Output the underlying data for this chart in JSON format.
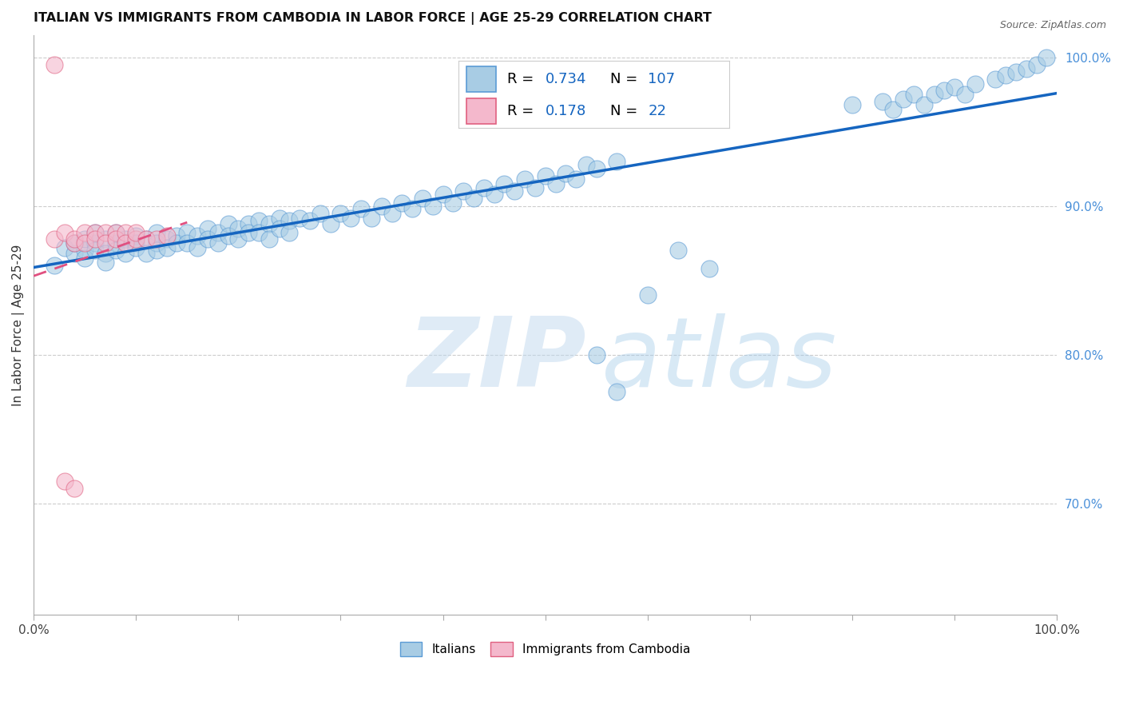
{
  "title": "ITALIAN VS IMMIGRANTS FROM CAMBODIA IN LABOR FORCE | AGE 25-29 CORRELATION CHART",
  "source": "Source: ZipAtlas.com",
  "ylabel": "In Labor Force | Age 25-29",
  "ylabel_right_ticks": [
    0.7,
    0.8,
    0.9,
    1.0
  ],
  "ylabel_right_labels": [
    "70.0%",
    "80.0%",
    "90.0%",
    "100.0%"
  ],
  "xlim": [
    0.0,
    1.0
  ],
  "ylim": [
    0.625,
    1.015
  ],
  "watermark_zip": "ZIP",
  "watermark_atlas": "atlas",
  "blue_color": "#a8cce4",
  "blue_edge": "#5b9bd5",
  "pink_color": "#f4b8cc",
  "pink_edge": "#e06080",
  "trend_blue": "#1565C0",
  "trend_pink": "#e05080",
  "label_italians": "Italians",
  "label_cambodia": "Immigrants from Cambodia",
  "blue_x": [
    0.02,
    0.03,
    0.04,
    0.04,
    0.05,
    0.05,
    0.05,
    0.06,
    0.06,
    0.06,
    0.07,
    0.07,
    0.07,
    0.08,
    0.08,
    0.08,
    0.09,
    0.09,
    0.1,
    0.1,
    0.1,
    0.11,
    0.11,
    0.12,
    0.12,
    0.12,
    0.13,
    0.13,
    0.14,
    0.14,
    0.15,
    0.15,
    0.16,
    0.16,
    0.17,
    0.17,
    0.18,
    0.18,
    0.19,
    0.19,
    0.2,
    0.2,
    0.21,
    0.21,
    0.22,
    0.22,
    0.23,
    0.23,
    0.24,
    0.24,
    0.25,
    0.25,
    0.26,
    0.27,
    0.28,
    0.29,
    0.3,
    0.31,
    0.32,
    0.33,
    0.34,
    0.35,
    0.36,
    0.37,
    0.38,
    0.39,
    0.4,
    0.41,
    0.42,
    0.43,
    0.44,
    0.45,
    0.46,
    0.47,
    0.48,
    0.49,
    0.5,
    0.51,
    0.52,
    0.53,
    0.54,
    0.55,
    0.57,
    0.6,
    0.63,
    0.66,
    0.8,
    0.83,
    0.84,
    0.85,
    0.86,
    0.87,
    0.88,
    0.89,
    0.9,
    0.91,
    0.92,
    0.94,
    0.95,
    0.96,
    0.97,
    0.98,
    0.99,
    0.5,
    0.53,
    0.55,
    0.57
  ],
  "blue_y": [
    0.86,
    0.872,
    0.868,
    0.875,
    0.87,
    0.878,
    0.865,
    0.875,
    0.882,
    0.87,
    0.878,
    0.868,
    0.862,
    0.875,
    0.882,
    0.87,
    0.878,
    0.868,
    0.88,
    0.875,
    0.872,
    0.878,
    0.868,
    0.882,
    0.875,
    0.87,
    0.878,
    0.872,
    0.88,
    0.875,
    0.882,
    0.875,
    0.88,
    0.872,
    0.885,
    0.878,
    0.882,
    0.875,
    0.888,
    0.88,
    0.885,
    0.878,
    0.888,
    0.882,
    0.89,
    0.882,
    0.888,
    0.878,
    0.892,
    0.885,
    0.89,
    0.882,
    0.892,
    0.89,
    0.895,
    0.888,
    0.895,
    0.892,
    0.898,
    0.892,
    0.9,
    0.895,
    0.902,
    0.898,
    0.905,
    0.9,
    0.908,
    0.902,
    0.91,
    0.905,
    0.912,
    0.908,
    0.915,
    0.91,
    0.918,
    0.912,
    0.92,
    0.915,
    0.922,
    0.918,
    0.928,
    0.925,
    0.93,
    0.84,
    0.87,
    0.858,
    0.968,
    0.97,
    0.965,
    0.972,
    0.975,
    0.968,
    0.975,
    0.978,
    0.98,
    0.975,
    0.982,
    0.985,
    0.988,
    0.99,
    0.992,
    0.995,
    1.0,
    0.968,
    0.96,
    0.8,
    0.775
  ],
  "pink_x": [
    0.02,
    0.03,
    0.04,
    0.04,
    0.05,
    0.05,
    0.06,
    0.06,
    0.07,
    0.07,
    0.08,
    0.08,
    0.09,
    0.09,
    0.1,
    0.1,
    0.11,
    0.12,
    0.13,
    0.02,
    0.03,
    0.04
  ],
  "pink_y": [
    0.878,
    0.882,
    0.875,
    0.878,
    0.882,
    0.875,
    0.882,
    0.878,
    0.882,
    0.875,
    0.882,
    0.878,
    0.882,
    0.875,
    0.878,
    0.882,
    0.878,
    0.878,
    0.88,
    0.995,
    0.715,
    0.71
  ]
}
